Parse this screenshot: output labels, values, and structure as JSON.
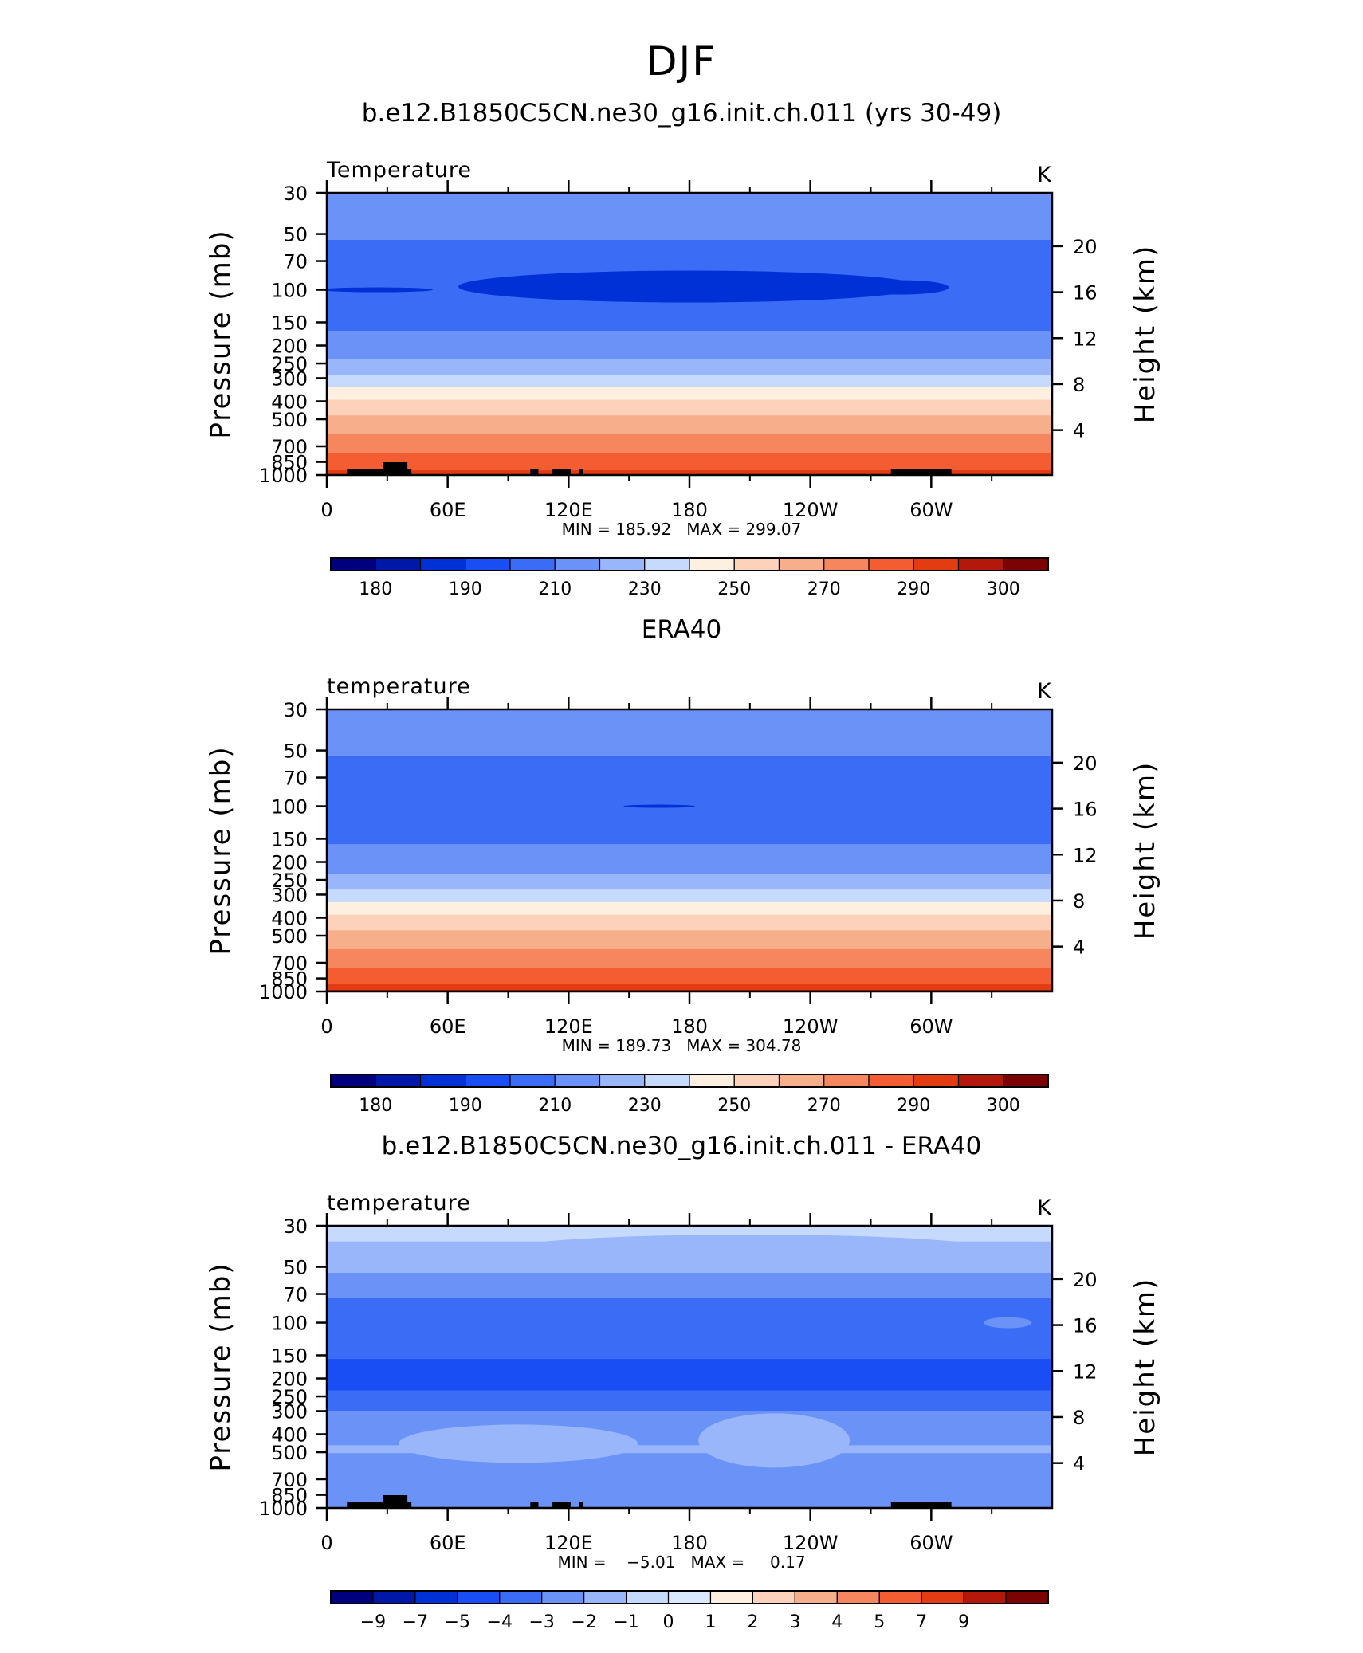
{
  "figure": {
    "title": "DJF"
  },
  "colors": {
    "temperature_levels": [
      "#00007f",
      "#0018a8",
      "#0031d6",
      "#1a4ef5",
      "#3a6cf5",
      "#6b93f7",
      "#9ab6fa",
      "#c6dafd",
      "#fef0e1",
      "#fcd2ba",
      "#f7ae8b",
      "#f6865e",
      "#f45d32",
      "#e33c12",
      "#b4180b",
      "#7c0304"
    ],
    "difference_levels": [
      "#00007f",
      "#0018a8",
      "#0031d6",
      "#1a4ef5",
      "#3a6cf5",
      "#6b93f7",
      "#9ab6fa",
      "#c6dafd",
      "#dbe9fe",
      "#fef0e1",
      "#fcd2ba",
      "#f7ae8b",
      "#f6865e",
      "#f45d32",
      "#e33c12",
      "#b4180b",
      "#7c0304"
    ]
  },
  "chart_data": [
    {
      "type": "heatmap",
      "title": "b.e12.B1850C5CN.ne30_g16.init.ch.011 (yrs 30-49)",
      "left_label": "Temperature",
      "units": "K",
      "ylabel": "Pressure  (mb)",
      "ylabel_right": "Height  (km)",
      "x_ticks": [
        "0",
        "60E",
        "120E",
        "180",
        "120W",
        "60W"
      ],
      "y_ticks": [
        "30",
        "50",
        "70",
        "100",
        "150",
        "200",
        "250",
        "300",
        "400",
        "500",
        "700",
        "850",
        "1000"
      ],
      "y_ticks_right": [
        "20",
        "16",
        "12",
        "8",
        "4"
      ],
      "ylim": [
        1000,
        30
      ],
      "stats": "MIN = 185.92   MAX = 299.07",
      "colorbar_labels": [
        "180",
        "190",
        "210",
        "230",
        "250",
        "270",
        "290",
        "300"
      ],
      "profile": [
        {
          "p": 30,
          "v": 215
        },
        {
          "p": 40,
          "v": 213
        },
        {
          "p": 50,
          "v": 211
        },
        {
          "p": 62,
          "v": 208
        },
        {
          "p": 75,
          "v": 205
        },
        {
          "p": 95,
          "v": 203
        },
        {
          "p": 110,
          "v": 204
        },
        {
          "p": 140,
          "v": 206
        },
        {
          "p": 160,
          "v": 209
        },
        {
          "p": 190,
          "v": 213
        },
        {
          "p": 220,
          "v": 217
        },
        {
          "p": 250,
          "v": 222
        },
        {
          "p": 280,
          "v": 228
        },
        {
          "p": 310,
          "v": 235
        },
        {
          "p": 350,
          "v": 243
        },
        {
          "p": 400,
          "v": 251
        },
        {
          "p": 460,
          "v": 258
        },
        {
          "p": 520,
          "v": 264
        },
        {
          "p": 600,
          "v": 270
        },
        {
          "p": 700,
          "v": 276
        },
        {
          "p": 800,
          "v": 282
        },
        {
          "p": 880,
          "v": 286
        },
        {
          "p": 950,
          "v": 290
        },
        {
          "p": 1000,
          "v": 293
        }
      ]
    },
    {
      "type": "heatmap",
      "title": "ERA40",
      "left_label": "temperature",
      "units": "K",
      "ylabel": "Pressure  (mb)",
      "ylabel_right": "Height  (km)",
      "x_ticks": [
        "0",
        "60E",
        "120E",
        "180",
        "120W",
        "60W"
      ],
      "y_ticks": [
        "30",
        "50",
        "70",
        "100",
        "150",
        "200",
        "250",
        "300",
        "400",
        "500",
        "700",
        "850",
        "1000"
      ],
      "y_ticks_right": [
        "20",
        "16",
        "12",
        "8",
        "4"
      ],
      "ylim": [
        1000,
        30
      ],
      "stats": "MIN = 189.73   MAX = 304.78",
      "colorbar_labels": [
        "180",
        "190",
        "210",
        "230",
        "250",
        "270",
        "290",
        "300"
      ],
      "profile": [
        {
          "p": 30,
          "v": 215
        },
        {
          "p": 40,
          "v": 213
        },
        {
          "p": 50,
          "v": 211
        },
        {
          "p": 62,
          "v": 208
        },
        {
          "p": 75,
          "v": 206
        },
        {
          "p": 95,
          "v": 205
        },
        {
          "p": 110,
          "v": 205
        },
        {
          "p": 140,
          "v": 207
        },
        {
          "p": 160,
          "v": 210
        },
        {
          "p": 190,
          "v": 214
        },
        {
          "p": 220,
          "v": 218
        },
        {
          "p": 250,
          "v": 223
        },
        {
          "p": 280,
          "v": 229
        },
        {
          "p": 310,
          "v": 236
        },
        {
          "p": 350,
          "v": 244
        },
        {
          "p": 400,
          "v": 252
        },
        {
          "p": 460,
          "v": 259
        },
        {
          "p": 520,
          "v": 265
        },
        {
          "p": 600,
          "v": 271
        },
        {
          "p": 700,
          "v": 277
        },
        {
          "p": 800,
          "v": 283
        },
        {
          "p": 880,
          "v": 288
        },
        {
          "p": 950,
          "v": 292
        },
        {
          "p": 1000,
          "v": 296
        }
      ]
    },
    {
      "type": "heatmap",
      "title": "b.e12.B1850C5CN.ne30_g16.init.ch.011 - ERA40",
      "left_label": "temperature",
      "units": "K",
      "ylabel": "Pressure  (mb)",
      "ylabel_right": "Height  (km)",
      "x_ticks": [
        "0",
        "60E",
        "120E",
        "180",
        "120W",
        "60W"
      ],
      "y_ticks": [
        "30",
        "50",
        "70",
        "100",
        "150",
        "200",
        "250",
        "300",
        "400",
        "500",
        "700",
        "850",
        "1000"
      ],
      "y_ticks_right": [
        "20",
        "16",
        "12",
        "8",
        "4"
      ],
      "ylim": [
        1000,
        30
      ],
      "stats": "MIN =    −5.01   MAX =     0.17",
      "colorbar_labels": [
        "−9",
        "−7",
        "−5",
        "−4",
        "−3",
        "−2",
        "−1",
        "0",
        "1",
        "2",
        "3",
        "4",
        "5",
        "7",
        "9"
      ],
      "profile": [
        {
          "p": 30,
          "v": -0.6
        },
        {
          "p": 40,
          "v": -1.2
        },
        {
          "p": 50,
          "v": -1.8
        },
        {
          "p": 62,
          "v": -2.4
        },
        {
          "p": 75,
          "v": -3.1
        },
        {
          "p": 95,
          "v": -3.3
        },
        {
          "p": 120,
          "v": -3.6
        },
        {
          "p": 150,
          "v": -3.9
        },
        {
          "p": 180,
          "v": -4.3
        },
        {
          "p": 220,
          "v": -4.2
        },
        {
          "p": 260,
          "v": -3.5
        },
        {
          "p": 300,
          "v": -3.0
        },
        {
          "p": 360,
          "v": -2.6
        },
        {
          "p": 420,
          "v": -2.3
        },
        {
          "p": 480,
          "v": -1.8
        },
        {
          "p": 550,
          "v": -2.3
        },
        {
          "p": 650,
          "v": -2.6
        },
        {
          "p": 750,
          "v": -2.7
        },
        {
          "p": 850,
          "v": -2.5
        },
        {
          "p": 950,
          "v": -2.3
        },
        {
          "p": 1000,
          "v": -2.2
        }
      ]
    }
  ]
}
